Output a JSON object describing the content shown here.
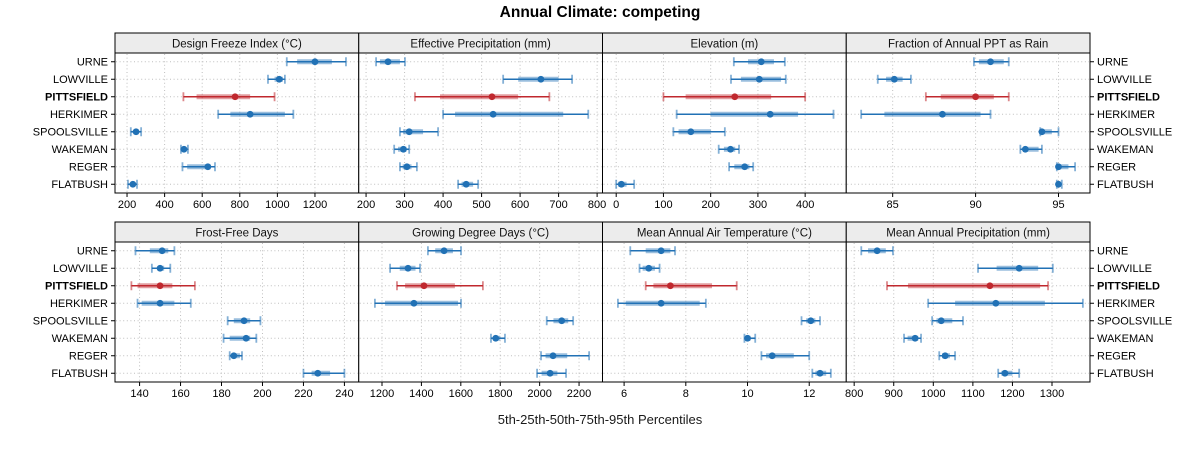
{
  "title": "Annual Climate: competing",
  "caption": "5th-25th-50th-75th-95th Percentiles",
  "chart_data": {
    "type": "dotplot",
    "subtype": "percentile-intervals",
    "percentiles": [
      5,
      25,
      50,
      75,
      95
    ],
    "categories": [
      "URNE",
      "LOWVILLE",
      "PITTSFIELD",
      "HERKIMER",
      "SPOOLSVILLE",
      "WAKEMAN",
      "REGER",
      "FLATBUSH"
    ],
    "highlight_category": "PITTSFIELD",
    "colors": {
      "series": "#2171b5",
      "highlight": "#c0282e",
      "strip_bg": "#ececec",
      "grid": "#bfbfbf"
    },
    "legend_position": "none",
    "grid": "dotted",
    "panels": [
      {
        "title": "Design Freeze Index (°C)",
        "xlim": [
          136,
          1433
        ],
        "ticks": [
          200,
          400,
          600,
          800,
          1000,
          1200
        ],
        "values": {
          "URNE": [
            1050,
            1105,
            1200,
            1290,
            1365
          ],
          "LOWVILLE": [
            950,
            985,
            1010,
            1030,
            1040
          ],
          "PITTSFIELD": [
            500,
            570,
            775,
            855,
            985
          ],
          "HERKIMER": [
            685,
            750,
            855,
            1040,
            1085
          ],
          "SPOOLSVILLE": [
            220,
            235,
            248,
            262,
            275
          ],
          "WAKEMAN": [
            487,
            493,
            503,
            515,
            524
          ],
          "REGER": [
            495,
            520,
            630,
            645,
            668
          ],
          "FLATBUSH": [
            205,
            220,
            231,
            243,
            253
          ]
        }
      },
      {
        "title": "Effective Precipitation (mm)",
        "xlim": [
          181,
          814
        ],
        "ticks": [
          200,
          300,
          400,
          500,
          600,
          700,
          800
        ],
        "values": {
          "URNE": [
            226,
            236,
            257,
            288,
            301
          ],
          "LOWVILLE": [
            556,
            595,
            654,
            700,
            735
          ],
          "PITTSFIELD": [
            327,
            392,
            527,
            595,
            676
          ],
          "HERKIMER": [
            400,
            431,
            530,
            712,
            777
          ],
          "SPOOLSVILLE": [
            288,
            296,
            312,
            348,
            387
          ],
          "WAKEMAN": [
            273,
            283,
            297,
            305,
            312
          ],
          "REGER": [
            288,
            295,
            306,
            318,
            332
          ],
          "FLATBUSH": [
            439,
            448,
            460,
            478,
            491
          ]
        }
      },
      {
        "title": "Elevation (m)",
        "xlim": [
          -29,
          487
        ],
        "ticks": [
          0,
          100,
          200,
          300,
          400
        ],
        "values": {
          "URNE": [
            249,
            279,
            307,
            334,
            357
          ],
          "LOWVILLE": [
            243,
            264,
            303,
            349,
            359
          ],
          "PITTSFIELD": [
            100,
            147,
            251,
            328,
            400
          ],
          "HERKIMER": [
            128,
            200,
            326,
            385,
            460
          ],
          "SPOOLSVILLE": [
            121,
            132,
            158,
            200,
            230
          ],
          "WAKEMAN": [
            217,
            228,
            242,
            252,
            260
          ],
          "REGER": [
            239,
            250,
            272,
            282,
            290
          ],
          "FLATBUSH": [
            0,
            4,
            11,
            22,
            38
          ]
        }
      },
      {
        "title": "Fraction of Annual PPT as Rain",
        "xlim": [
          82.2,
          96.9
        ],
        "ticks": [
          85,
          90,
          95
        ],
        "values": {
          "URNE": [
            89.9,
            90.2,
            90.9,
            91.7,
            92.0
          ],
          "LOWVILLE": [
            84.1,
            84.6,
            85.1,
            85.6,
            86.1
          ],
          "PITTSFIELD": [
            87.0,
            87.9,
            90.0,
            91.1,
            92.0
          ],
          "HERKIMER": [
            83.1,
            84.5,
            88.0,
            90.3,
            90.9
          ],
          "SPOOLSVILLE": [
            93.9,
            94.0,
            94.0,
            94.6,
            95.0
          ],
          "WAKEMAN": [
            92.7,
            92.9,
            93.0,
            93.8,
            94.0
          ],
          "REGER": [
            94.9,
            95.0,
            95.0,
            95.6,
            96.0
          ],
          "FLATBUSH": [
            94.9,
            95.0,
            95.0,
            95.1,
            95.2
          ]
        }
      },
      {
        "title": "Frost-Free Days",
        "xlim": [
          128,
          247
        ],
        "ticks": [
          140,
          160,
          180,
          200,
          220,
          240
        ],
        "values": {
          "URNE": [
            138,
            145,
            151,
            154,
            157
          ],
          "LOWVILLE": [
            146,
            149,
            150,
            152,
            155
          ],
          "PITTSFIELD": [
            136,
            139,
            150,
            156,
            167
          ],
          "HERKIMER": [
            139,
            141,
            150,
            157,
            165
          ],
          "SPOOLSVILLE": [
            183,
            186,
            191,
            194,
            199
          ],
          "WAKEMAN": [
            181,
            184,
            192,
            194,
            197
          ],
          "REGER": [
            184,
            185,
            186,
            189,
            190
          ],
          "FLATBUSH": [
            220,
            224,
            227,
            233,
            240
          ]
        }
      },
      {
        "title": "Growing Degree Days (°C)",
        "xlim": [
          1082,
          2319
        ],
        "ticks": [
          1200,
          1400,
          1600,
          1800,
          2000,
          2200
        ],
        "values": {
          "URNE": [
            1433,
            1470,
            1515,
            1560,
            1601
          ],
          "LOWVILLE": [
            1241,
            1290,
            1332,
            1370,
            1393
          ],
          "PITTSFIELD": [
            1276,
            1317,
            1413,
            1570,
            1712
          ],
          "HERKIMER": [
            1164,
            1215,
            1362,
            1586,
            1601
          ],
          "SPOOLSVILLE": [
            2036,
            2070,
            2112,
            2145,
            2170
          ],
          "WAKEMAN": [
            1753,
            1765,
            1777,
            1800,
            1824
          ],
          "REGER": [
            2007,
            2030,
            2068,
            2140,
            2251
          ],
          "FLATBUSH": [
            1987,
            2010,
            2053,
            2090,
            2134
          ]
        }
      },
      {
        "title": "Mean Annual Air Temperature (°C)",
        "xlim": [
          5.3,
          13.2
        ],
        "ticks": [
          6,
          8,
          10,
          12
        ],
        "values": {
          "URNE": [
            6.2,
            6.7,
            7.2,
            7.5,
            7.65
          ],
          "LOWVILLE": [
            6.5,
            6.6,
            6.8,
            7.0,
            7.15
          ],
          "PITTSFIELD": [
            6.7,
            6.95,
            7.5,
            8.85,
            9.65
          ],
          "HERKIMER": [
            5.8,
            6.05,
            7.2,
            8.45,
            8.65
          ],
          "SPOOLSVILLE": [
            11.75,
            11.9,
            12.05,
            12.2,
            12.35
          ],
          "WAKEMAN": [
            9.9,
            9.95,
            10.0,
            10.1,
            10.25
          ],
          "REGER": [
            10.45,
            10.6,
            10.8,
            11.5,
            12.0
          ],
          "FLATBUSH": [
            12.1,
            12.2,
            12.35,
            12.55,
            12.7
          ]
        }
      },
      {
        "title": "Mean Annual Precipitation (mm)",
        "xlim": [
          780,
          1396
        ],
        "ticks": [
          800,
          900,
          1000,
          1100,
          1200,
          1300
        ],
        "values": {
          "URNE": [
            818,
            835,
            858,
            880,
            898
          ],
          "LOWVILLE": [
            1113,
            1160,
            1217,
            1265,
            1302
          ],
          "PITTSFIELD": [
            883,
            936,
            1143,
            1270,
            1290
          ],
          "HERKIMER": [
            987,
            1055,
            1158,
            1282,
            1378
          ],
          "SPOOLSVILLE": [
            997,
            1008,
            1020,
            1048,
            1075
          ],
          "WAKEMAN": [
            926,
            935,
            954,
            962,
            969
          ],
          "REGER": [
            1015,
            1022,
            1030,
            1042,
            1055
          ],
          "FLATBUSH": [
            1164,
            1172,
            1181,
            1200,
            1217
          ]
        }
      }
    ]
  }
}
